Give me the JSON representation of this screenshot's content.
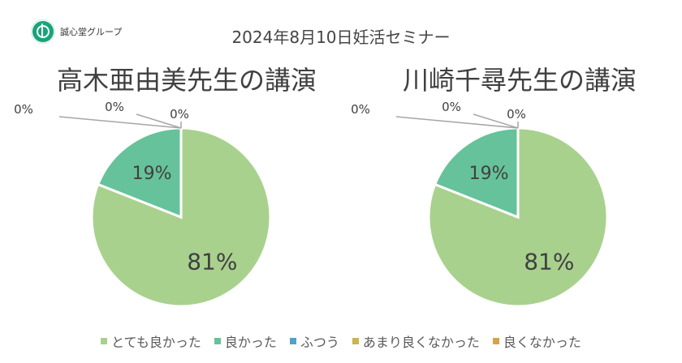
{
  "logo": {
    "text": "誠心堂グループ",
    "color": "#1aa37a"
  },
  "header": {
    "title": "2024年8月10日妊活セミナー"
  },
  "legend": [
    {
      "label": "とても良かった",
      "color": "#a9d18e"
    },
    {
      "label": "良かった",
      "color": "#66c29a"
    },
    {
      "label": "ふつう",
      "color": "#4fa3c9"
    },
    {
      "label": "あまり良くなかった",
      "color": "#c9b458"
    },
    {
      "label": "良くなかった",
      "color": "#d4a542"
    }
  ],
  "chart_data": [
    {
      "type": "pie",
      "title": "高木亜由美先生の講演",
      "categories": [
        "とても良かった",
        "良かった",
        "ふつう",
        "あまり良くなかった",
        "良くなかった"
      ],
      "values": [
        81,
        19,
        0,
        0,
        0
      ],
      "labels": [
        "81%",
        "19%",
        "0%",
        "0%",
        "0%"
      ]
    },
    {
      "type": "pie",
      "title": "川崎千尋先生の講演",
      "categories": [
        "とても良かった",
        "良かった",
        "ふつう",
        "あまり良くなかった",
        "良くなかった"
      ],
      "values": [
        81,
        19,
        0,
        0,
        0
      ],
      "labels": [
        "81%",
        "19%",
        "0%",
        "0%",
        "0%"
      ]
    }
  ]
}
